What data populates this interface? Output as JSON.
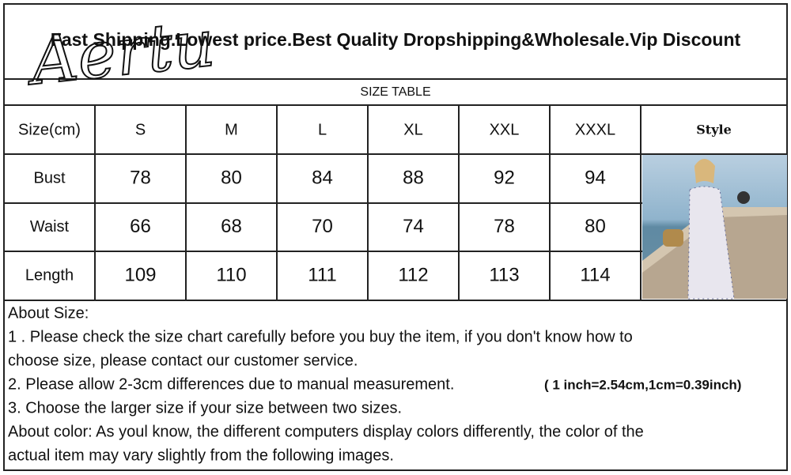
{
  "header": {
    "logo": "Aertu",
    "banner": "Fast Shipping.Lowest price.Best Quality Dropshipping&Wholesale.Vip Discount"
  },
  "table": {
    "title": "SIZE TABLE",
    "columns": [
      "Size(cm)",
      "S",
      "M",
      "L",
      "XL",
      "XXL",
      "XXXL",
      "Style"
    ],
    "rows": [
      [
        "Bust",
        "78",
        "80",
        "84",
        "88",
        "92",
        "94"
      ],
      [
        "Waist",
        "66",
        "68",
        "70",
        "74",
        "78",
        "80"
      ],
      [
        "Length",
        "109",
        "110",
        "111",
        "112",
        "113",
        "114"
      ]
    ]
  },
  "notes": {
    "heading": "About Size:",
    "lines": [
      "1 . Please check the size chart carefully before you buy the item, if you don't know how to",
      "choose size, please contact our customer service.",
      "2. Please allow 2-3cm differences due to manual measurement.",
      "3. Choose the larger size if your size between two sizes.",
      "About color: As youl know, the different computers display colors differently, the color of the",
      "actual item may vary slightly from the following images."
    ],
    "conversion": "( 1 inch=2.54cm,1cm=0.39inch)"
  }
}
